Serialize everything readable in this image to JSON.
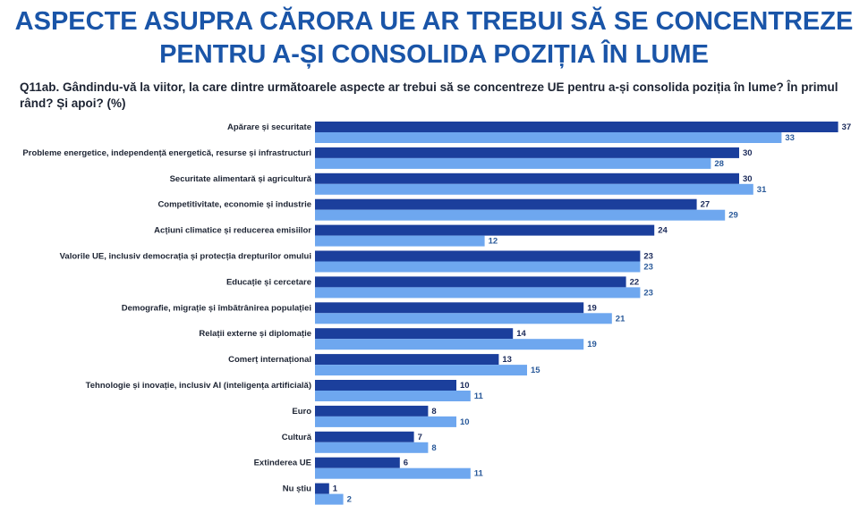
{
  "chart_data": {
    "type": "bar",
    "orientation": "horizontal",
    "title": [
      "ASPECTE ASUPRA CĂRORA UE AR TREBUI SĂ SE CONCENTREZE",
      "PENTRU A-ȘI CONSOLIDA POZIȚIA ÎN LUME"
    ],
    "subtitle": "Q11ab. Gândindu-vă la viitor, la care dintre următoarele aspecte ar trebui să se concentreze UE pentru a-și consolida poziția în lume? În primul rând? Și apoi? (%)",
    "categories": [
      "Apărare și securitate",
      "Probleme energetice, independență energetică, resurse și infrastructuri",
      "Securitate alimentară și agricultură",
      "Competitivitate, economie și industrie",
      "Acțiuni climatice și reducerea emisiilor",
      "Valorile UE, inclusiv democrația și protecția drepturilor omului",
      "Educație și cercetare",
      "Demografie, migrație și îmbătrânirea populației",
      "Relații externe și diplomație",
      "Comerț internațional",
      "Tehnologie și inovație, inclusiv AI (inteligența artificială)",
      "Euro",
      "Cultură",
      "Extinderea UE",
      "Nu știu"
    ],
    "series": [
      {
        "color": "#1b3f9c",
        "values": [
          37,
          30,
          30,
          27,
          24,
          23,
          22,
          19,
          14,
          13,
          10,
          8,
          7,
          6,
          1
        ]
      },
      {
        "color": "#6ea7ef",
        "values": [
          33,
          28,
          31,
          29,
          12,
          23,
          23,
          21,
          19,
          15,
          11,
          10,
          8,
          11,
          2
        ]
      }
    ]
  }
}
